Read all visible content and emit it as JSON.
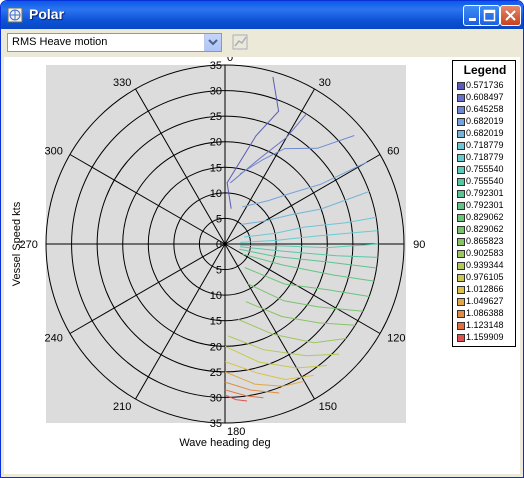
{
  "window": {
    "title": "Polar"
  },
  "toolbar": {
    "quantity_select": "RMS Heave motion"
  },
  "chart_data": {
    "type": "polar",
    "xlabel": "Wave heading  deg",
    "ylabel": "Vessel Speed  kts",
    "radial_range": [
      0,
      35
    ],
    "radial_ticks": [
      35,
      30,
      25,
      20,
      15,
      10,
      5,
      0,
      5,
      10,
      15,
      20,
      25,
      30,
      35
    ],
    "angle_ticks": [
      0,
      30,
      60,
      90,
      120,
      150,
      180,
      210,
      240,
      270,
      300,
      330
    ],
    "grid": true,
    "legend_position": "right",
    "legend": {
      "title": "Legend",
      "entries": [
        {
          "label": "0.571736",
          "color": "#5a5ab8"
        },
        {
          "label": "0.608497",
          "color": "#6a72c8"
        },
        {
          "label": "0.645258",
          "color": "#6f8ad4"
        },
        {
          "label": "0.682019",
          "color": "#74a4da"
        },
        {
          "label": "0.682019",
          "color": "#74b4d8"
        },
        {
          "label": "0.718779",
          "color": "#6cc6d6"
        },
        {
          "label": "0.718779",
          "color": "#66ccd0"
        },
        {
          "label": "0.755540",
          "color": "#5ccbb8"
        },
        {
          "label": "0.755540",
          "color": "#58c8a4"
        },
        {
          "label": "0.792301",
          "color": "#5cc492"
        },
        {
          "label": "0.792301",
          "color": "#62c484"
        },
        {
          "label": "0.829062",
          "color": "#6cc478"
        },
        {
          "label": "0.829062",
          "color": "#78c46e"
        },
        {
          "label": "0.865823",
          "color": "#88c466"
        },
        {
          "label": "0.902583",
          "color": "#9cc660"
        },
        {
          "label": "0.939344",
          "color": "#b0c85a"
        },
        {
          "label": "0.976105",
          "color": "#c8c852"
        },
        {
          "label": "1.012866",
          "color": "#dcc04c"
        },
        {
          "label": "1.049627",
          "color": "#e0a848"
        },
        {
          "label": "1.086388",
          "color": "#e08c44"
        },
        {
          "label": "1.123148",
          "color": "#e07040"
        },
        {
          "label": "1.159909",
          "color": "#e05252"
        }
      ]
    }
  }
}
